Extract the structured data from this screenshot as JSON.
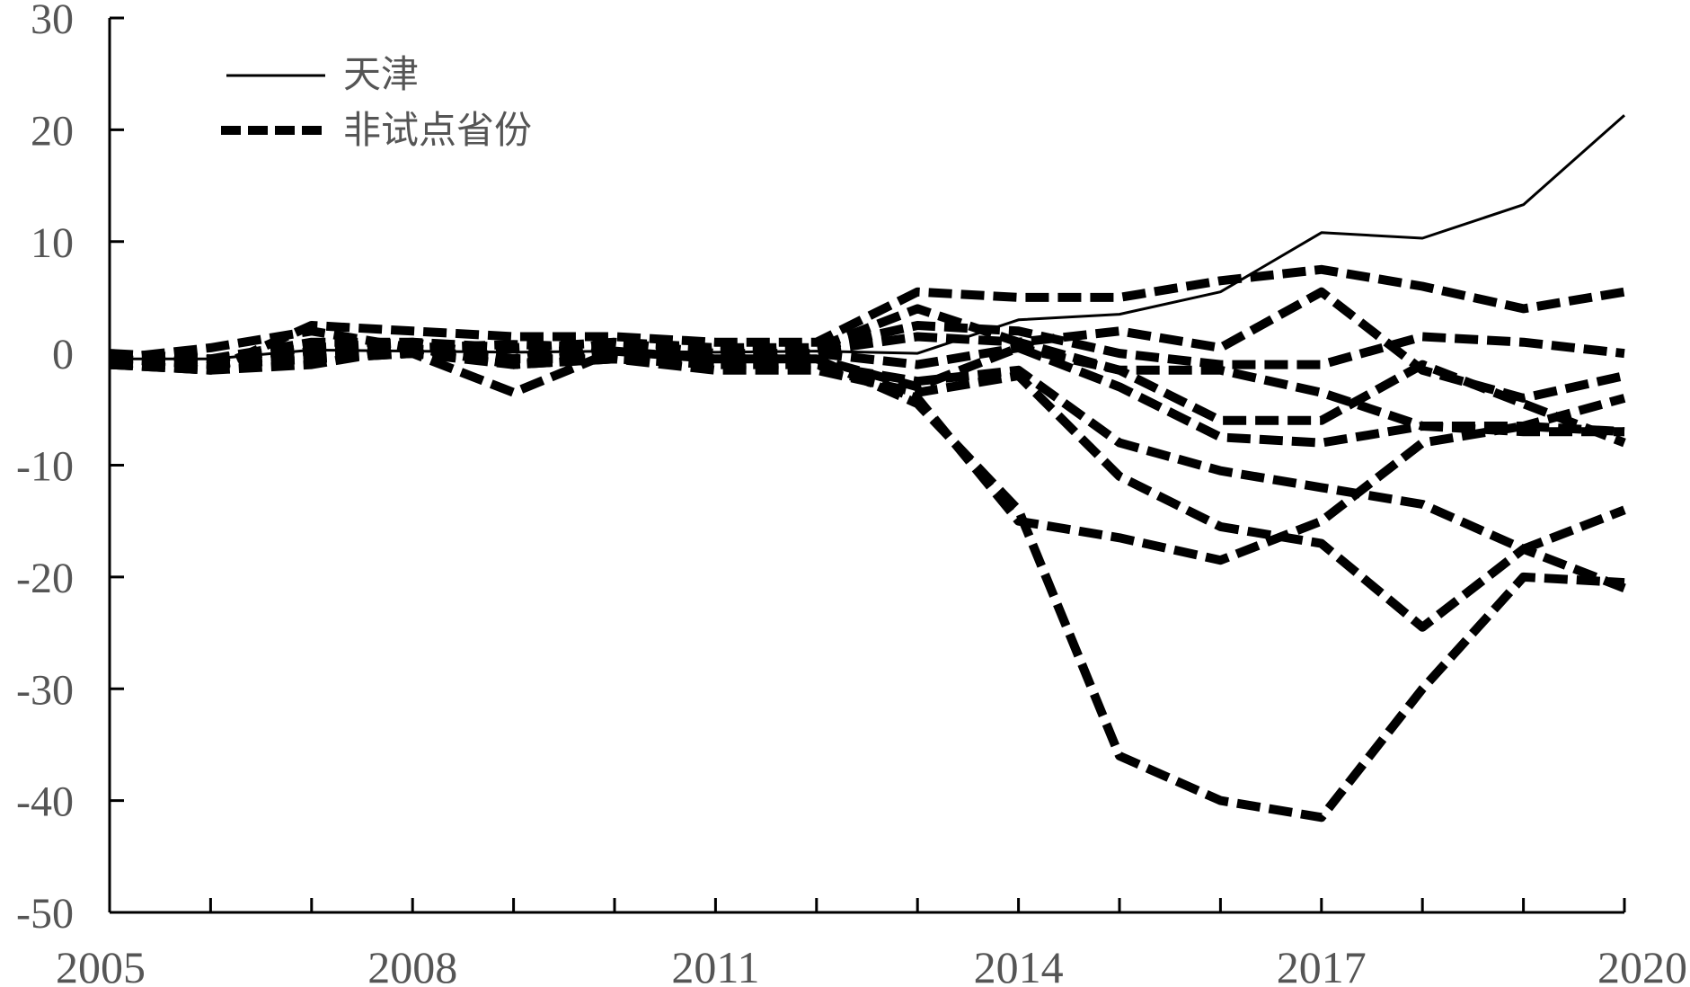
{
  "chart_data": {
    "type": "line",
    "title": "",
    "xlabel": "",
    "ylabel": "",
    "xlim": [
      2005,
      2020
    ],
    "ylim": [
      -50,
      30
    ],
    "x_ticks": [
      "2005",
      "2008",
      "2011",
      "2014",
      "2017",
      "2020"
    ],
    "y_ticks": [
      "30",
      "20",
      "10",
      "0",
      "-10",
      "-20",
      "-30",
      "-40",
      "-50"
    ],
    "legend": {
      "position": "top-left",
      "entries": [
        {
          "label": "天津",
          "style": "solid"
        },
        {
          "label": "非试点省份",
          "style": "dashed"
        }
      ]
    },
    "x": [
      2005,
      2006,
      2007,
      2008,
      2009,
      2010,
      2011,
      2012,
      2013,
      2014,
      2015,
      2016,
      2017,
      2018,
      2019,
      2020
    ],
    "series": [
      {
        "name": "天津",
        "style": "solid",
        "values": [
          -0.5,
          -0.5,
          0.3,
          0.2,
          0.1,
          0.2,
          0.1,
          0.2,
          0.0,
          3.0,
          3.5,
          5.5,
          10.8,
          10.3,
          13.3,
          21.3
        ]
      },
      {
        "style": "dashed",
        "values": [
          -1,
          -1.5,
          2.5,
          2.0,
          1.5,
          1.5,
          1.0,
          1.0,
          5.5,
          5.0,
          5.0,
          6.5,
          7.5,
          6.0,
          4.0,
          5.5
        ]
      },
      {
        "style": "dashed",
        "values": [
          -0.5,
          0.5,
          2.0,
          0.5,
          0.8,
          0.5,
          0.5,
          0.5,
          4.0,
          1.0,
          2.0,
          0.5,
          5.5,
          -1.5,
          -4.0,
          -2.0
        ]
      },
      {
        "style": "dashed",
        "values": [
          -1,
          -0.5,
          0.5,
          1.0,
          -0.5,
          1.0,
          0.5,
          0.5,
          2.5,
          2.0,
          0.0,
          -1.0,
          -1.0,
          1.5,
          1.0,
          0.0
        ]
      },
      {
        "style": "dashed",
        "values": [
          -1,
          -1,
          0.2,
          0.5,
          -1.0,
          0.3,
          0.2,
          0.2,
          1.5,
          1.0,
          -1.5,
          -1.5,
          -3.5,
          -6.5,
          -6.5,
          -4.0
        ]
      },
      {
        "style": "dashed",
        "values": [
          0,
          -0.5,
          1.0,
          1.0,
          0.5,
          1.0,
          0.0,
          0.0,
          -1.0,
          0.5,
          -1.5,
          -6.0,
          -6.0,
          -1.0,
          -4.5,
          -8.0
        ]
      },
      {
        "style": "dashed",
        "values": [
          -0.5,
          -1,
          0.0,
          0.0,
          -3.5,
          0.2,
          -0.5,
          -0.5,
          -3.0,
          0.5,
          -3.0,
          -7.5,
          -8.0,
          -6.5,
          -7.0,
          -7.0
        ]
      },
      {
        "style": "dashed",
        "values": [
          -1,
          -1.5,
          -1.0,
          0.5,
          -1.0,
          -0.5,
          -1.0,
          -1.0,
          -2.5,
          -1.5,
          -8.0,
          -10.5,
          -12.0,
          -13.5,
          -17.5,
          -14.0
        ]
      },
      {
        "style": "dashed",
        "values": [
          -0.5,
          -1,
          -0.5,
          0.0,
          -0.5,
          -0.5,
          -1.5,
          -1.5,
          -3.5,
          -2.0,
          -11.0,
          -15.5,
          -17.0,
          -24.5,
          -17.5,
          -21.0
        ]
      },
      {
        "style": "dashed",
        "values": [
          -1,
          -1,
          -0.5,
          0.0,
          -1.0,
          -0.5,
          -1.0,
          -1.0,
          -4.0,
          -15.0,
          -16.5,
          -18.5,
          -15.0,
          -8.0,
          -6.5,
          -7.0
        ]
      },
      {
        "style": "dashed",
        "values": [
          -0.5,
          -1,
          0.0,
          0.3,
          -0.5,
          0.0,
          -0.5,
          -0.5,
          -4.5,
          -14.0,
          -36.0,
          -40.0,
          -41.5,
          -30.0,
          -20.0,
          -20.5
        ]
      }
    ]
  }
}
